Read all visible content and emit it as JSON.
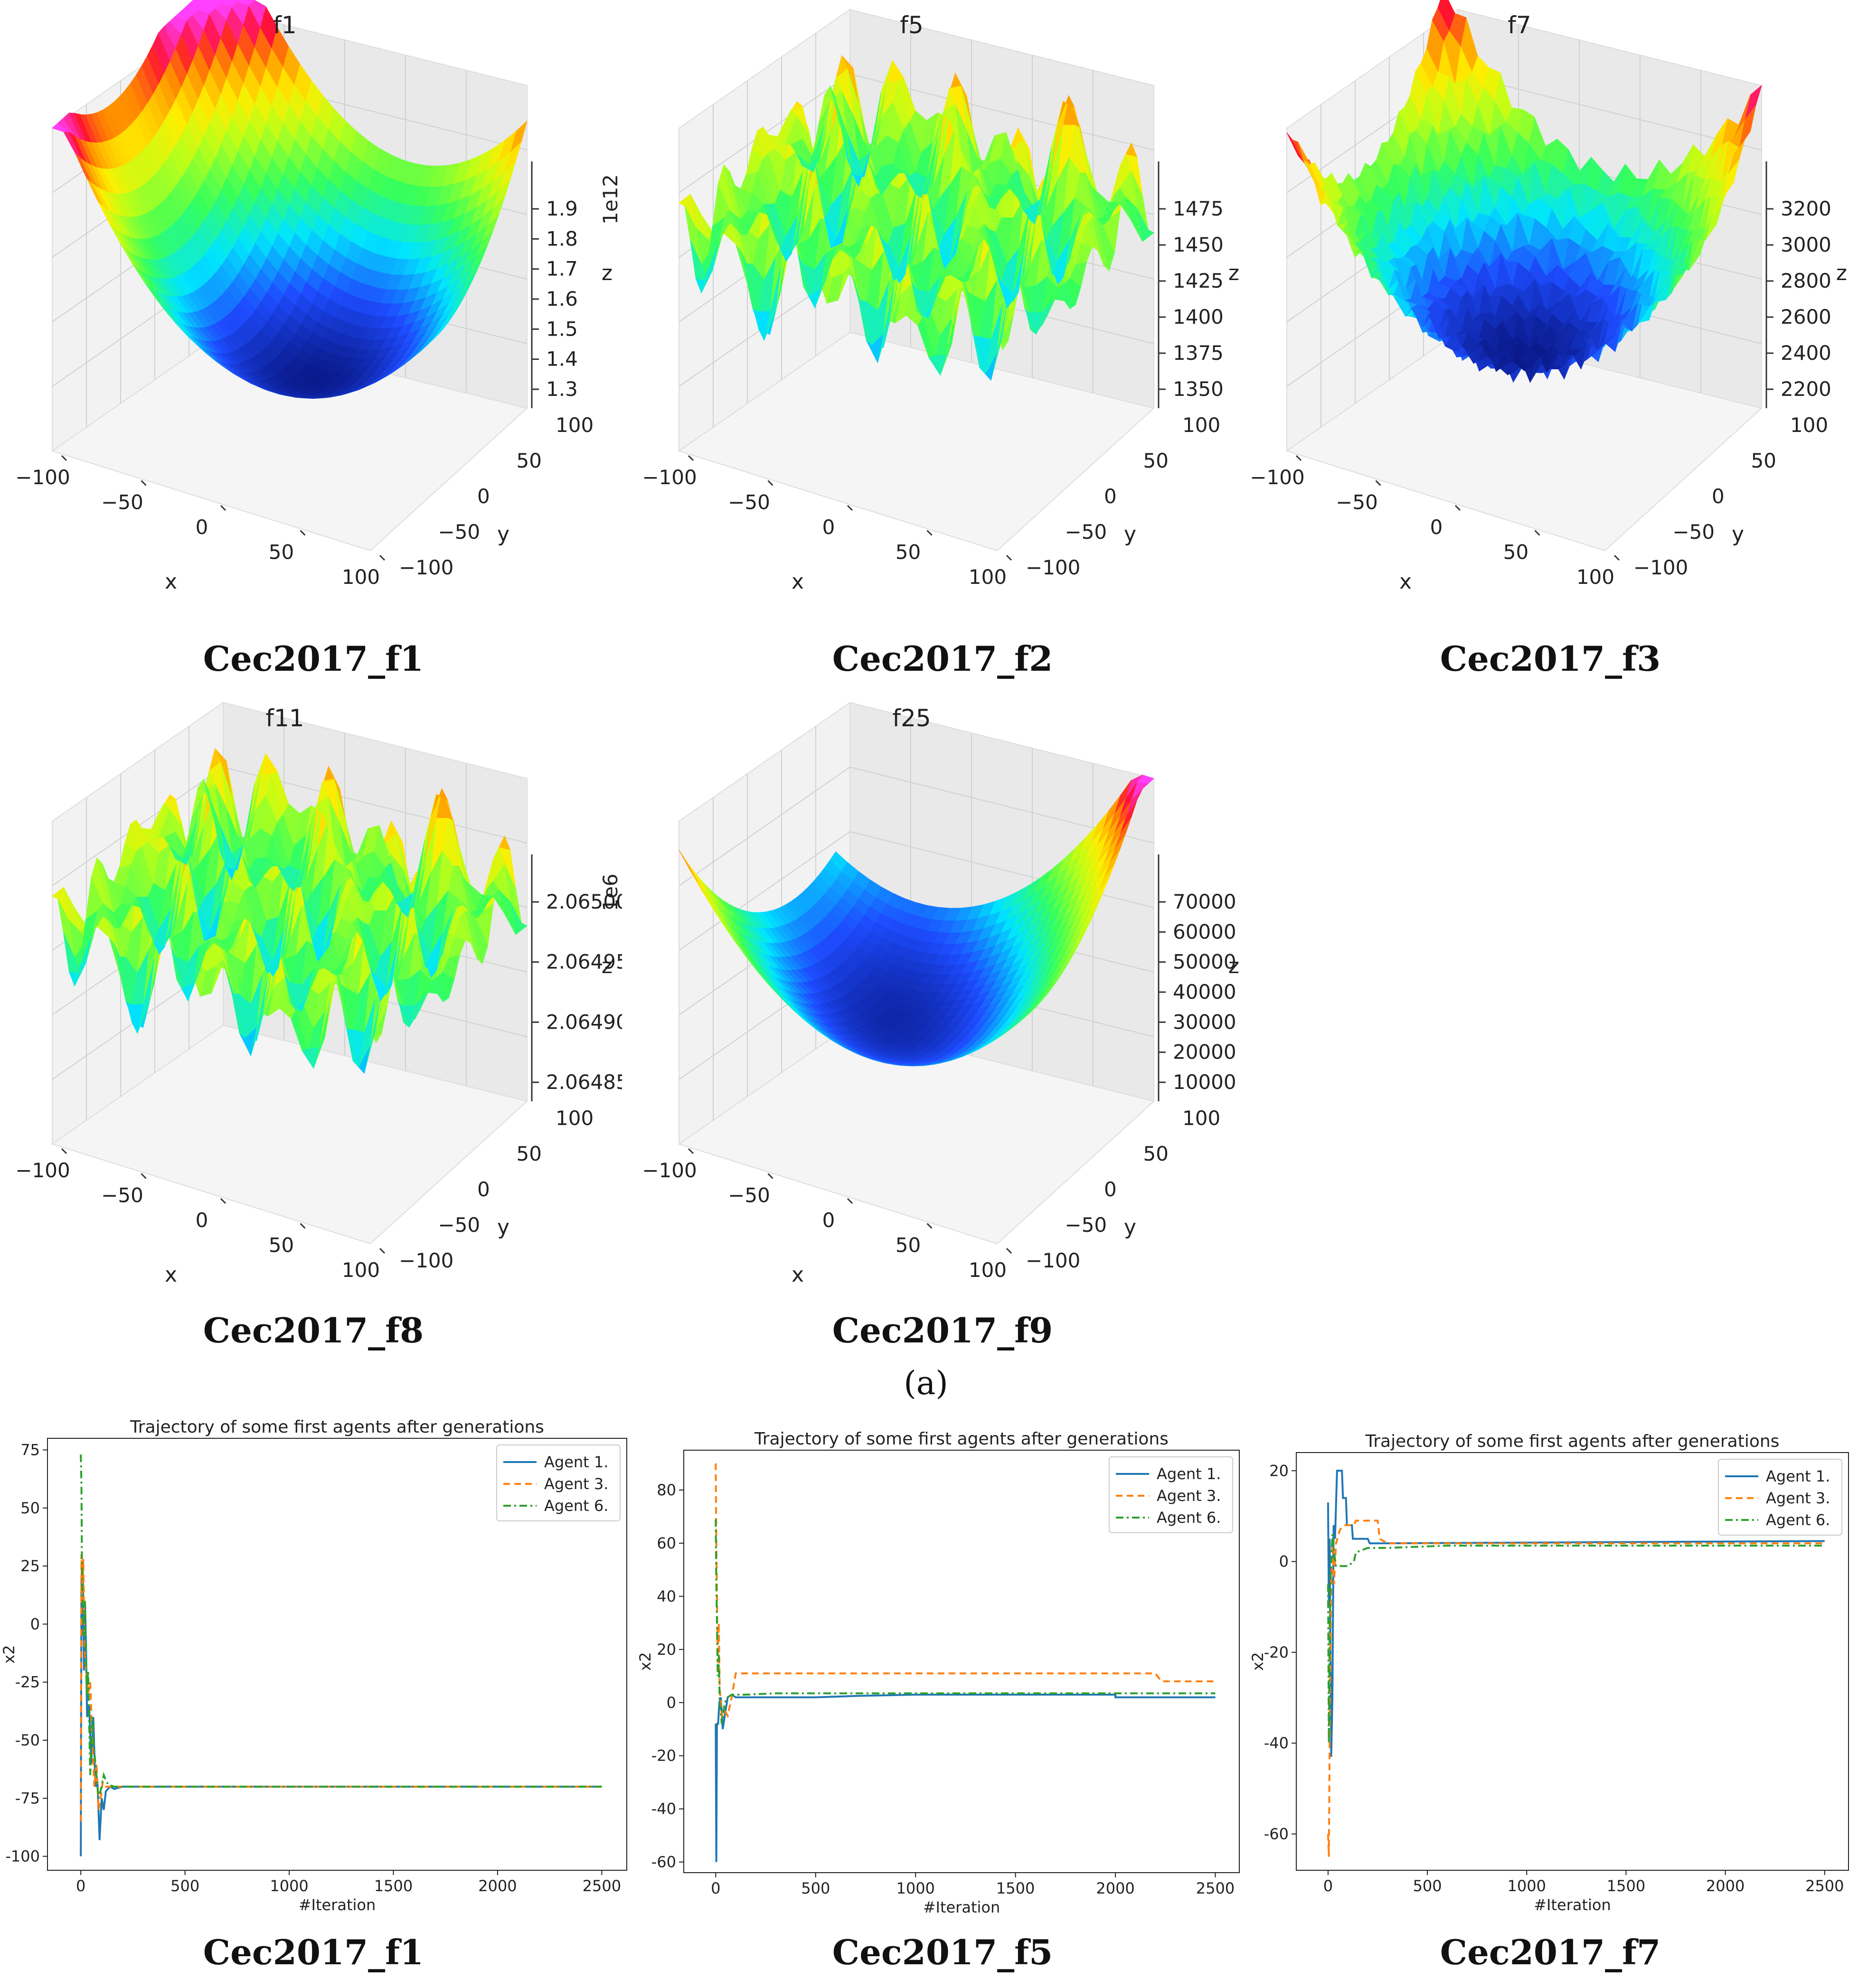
{
  "figure_label": "(a)",
  "chart_data": [
    {
      "type": "surface3d",
      "title": "f1",
      "caption": "Cec2017_f1",
      "x_ticks": [
        "−100",
        "−50",
        "0",
        "50",
        "100"
      ],
      "y_ticks": [
        "100",
        "50",
        "0",
        "−50",
        "−100"
      ],
      "z_ticks": [
        "1.9",
        "1.8",
        "1.7",
        "1.6",
        "1.5",
        "1.4",
        "1.3"
      ],
      "z_offset": "1e12",
      "xlabel": "x",
      "ylabel": "y",
      "zlabel": "z",
      "colormap": "gist_rainbow",
      "surface_shape": "bowl"
    },
    {
      "type": "surface3d",
      "title": "f5",
      "caption": "Cec2017_f2",
      "x_ticks": [
        "−100",
        "−50",
        "0",
        "50",
        "100"
      ],
      "y_ticks": [
        "100",
        "50",
        "0",
        "−50",
        "−100"
      ],
      "z_ticks": [
        "1475",
        "1450",
        "1425",
        "1400",
        "1375",
        "1350"
      ],
      "z_offset": "",
      "xlabel": "x",
      "ylabel": "y",
      "zlabel": "z",
      "colormap": "gist_rainbow",
      "surface_shape": "rugged"
    },
    {
      "type": "surface3d",
      "title": "f7",
      "caption": "Cec2017_f3",
      "x_ticks": [
        "−100",
        "−50",
        "0",
        "50",
        "100"
      ],
      "y_ticks": [
        "100",
        "50",
        "0",
        "−50",
        "−100"
      ],
      "z_ticks": [
        "3200",
        "3000",
        "2800",
        "2600",
        "2400",
        "2200"
      ],
      "z_offset": "",
      "xlabel": "x",
      "ylabel": "y",
      "zlabel": "z",
      "colormap": "gist_rainbow",
      "surface_shape": "noisy-bowl"
    },
    {
      "type": "surface3d",
      "title": "f11",
      "caption": "Cec2017_f8",
      "x_ticks": [
        "−100",
        "−50",
        "0",
        "50",
        "100"
      ],
      "y_ticks": [
        "100",
        "50",
        "0",
        "−50",
        "−100"
      ],
      "z_ticks": [
        "2.06500",
        "2.06495",
        "2.06490",
        "2.06485"
      ],
      "z_offset": "1e6",
      "xlabel": "x",
      "ylabel": "y",
      "zlabel": "z",
      "colormap": "gist_rainbow",
      "surface_shape": "rugged"
    },
    {
      "type": "surface3d",
      "title": "f25",
      "caption": "Cec2017_f9",
      "x_ticks": [
        "−100",
        "−50",
        "0",
        "50",
        "100"
      ],
      "y_ticks": [
        "100",
        "50",
        "0",
        "−50",
        "−100"
      ],
      "z_ticks": [
        "70000",
        "60000",
        "50000",
        "40000",
        "30000",
        "20000",
        "10000"
      ],
      "z_offset": "",
      "xlabel": "x",
      "ylabel": "y",
      "zlabel": "z",
      "colormap": "gist_rainbow",
      "surface_shape": "saddle-bowl"
    },
    {
      "type": "line",
      "title": "Trajectory of some first agents after generations",
      "caption": "Cec2017_f1",
      "xlabel": "#Iteration",
      "ylabel": "x2",
      "xlim": [
        -160,
        2620
      ],
      "ylim": [
        -106,
        80
      ],
      "x_ticks": [
        0,
        500,
        1000,
        1500,
        2000,
        2500
      ],
      "y_ticks": [
        75,
        50,
        25,
        0,
        -25,
        -50,
        -75,
        -100
      ],
      "legend": "top-right",
      "series": [
        {
          "name": "Agent 1.",
          "color": "#1f77b4",
          "dash": "",
          "points": [
            [
              0,
              -100
            ],
            [
              3,
              20
            ],
            [
              6,
              -5
            ],
            [
              10,
              25
            ],
            [
              15,
              -20
            ],
            [
              20,
              10
            ],
            [
              25,
              -10
            ],
            [
              30,
              -40
            ],
            [
              40,
              -35
            ],
            [
              50,
              -60
            ],
            [
              60,
              -40
            ],
            [
              70,
              -70
            ],
            [
              80,
              -68
            ],
            [
              90,
              -93
            ],
            [
              100,
              -75
            ],
            [
              110,
              -80
            ],
            [
              120,
              -72
            ],
            [
              140,
              -70
            ],
            [
              160,
              -71
            ],
            [
              200,
              -70
            ],
            [
              2500,
              -70
            ]
          ]
        },
        {
          "name": "Agent 3.",
          "color": "#ff7f0e",
          "dash": "14,9",
          "points": [
            [
              0,
              -85
            ],
            [
              3,
              30
            ],
            [
              6,
              10
            ],
            [
              12,
              28
            ],
            [
              18,
              -10
            ],
            [
              25,
              -20
            ],
            [
              35,
              -30
            ],
            [
              45,
              -25
            ],
            [
              55,
              -50
            ],
            [
              65,
              -70
            ],
            [
              75,
              -60
            ],
            [
              85,
              -80
            ],
            [
              95,
              -75
            ],
            [
              105,
              -68
            ],
            [
              120,
              -70
            ],
            [
              150,
              -70
            ],
            [
              2500,
              -70
            ]
          ]
        },
        {
          "name": "Agent 6.",
          "color": "#2ca02c",
          "dash": "16,7,4,7",
          "points": [
            [
              0,
              73
            ],
            [
              3,
              60
            ],
            [
              6,
              20
            ],
            [
              10,
              5
            ],
            [
              15,
              -5
            ],
            [
              20,
              10
            ],
            [
              28,
              -30
            ],
            [
              35,
              -20
            ],
            [
              45,
              -65
            ],
            [
              55,
              -40
            ],
            [
              65,
              -55
            ],
            [
              75,
              -65
            ],
            [
              85,
              -75
            ],
            [
              100,
              -70
            ],
            [
              110,
              -65
            ],
            [
              130,
              -69
            ],
            [
              160,
              -70
            ],
            [
              2500,
              -70
            ]
          ]
        }
      ]
    },
    {
      "type": "line",
      "title": "Trajectory of some first agents after generations",
      "caption": "Cec2017_f5",
      "xlabel": "#Iteration",
      "ylabel": "x2",
      "xlim": [
        -160,
        2620
      ],
      "ylim": [
        -64,
        95
      ],
      "x_ticks": [
        0,
        500,
        1000,
        1500,
        2000,
        2500
      ],
      "y_ticks": [
        80,
        60,
        40,
        20,
        0,
        -20,
        -40,
        -60
      ],
      "legend": "top-right",
      "series": [
        {
          "name": "Agent 1.",
          "color": "#1f77b4",
          "dash": "",
          "points": [
            [
              0,
              -8
            ],
            [
              3,
              -60
            ],
            [
              6,
              -8
            ],
            [
              12,
              -8
            ],
            [
              18,
              0
            ],
            [
              25,
              2
            ],
            [
              35,
              -10
            ],
            [
              45,
              -5
            ],
            [
              60,
              2
            ],
            [
              80,
              3
            ],
            [
              100,
              2
            ],
            [
              150,
              2
            ],
            [
              300,
              2
            ],
            [
              500,
              2
            ],
            [
              700,
              2.5
            ],
            [
              1000,
              3
            ],
            [
              2000,
              3
            ],
            [
              2000,
              2
            ],
            [
              2500,
              2
            ]
          ]
        },
        {
          "name": "Agent 3.",
          "color": "#ff7f0e",
          "dash": "14,9",
          "points": [
            [
              0,
              90
            ],
            [
              3,
              60
            ],
            [
              6,
              40
            ],
            [
              10,
              15
            ],
            [
              15,
              30
            ],
            [
              20,
              5
            ],
            [
              30,
              -5
            ],
            [
              45,
              -3
            ],
            [
              60,
              -5
            ],
            [
              80,
              2
            ],
            [
              100,
              11
            ],
            [
              2200,
              11
            ],
            [
              2230,
              8
            ],
            [
              2500,
              8
            ]
          ]
        },
        {
          "name": "Agent 6.",
          "color": "#2ca02c",
          "dash": "16,7,4,7",
          "points": [
            [
              0,
              69
            ],
            [
              3,
              45
            ],
            [
              6,
              30
            ],
            [
              10,
              10
            ],
            [
              15,
              18
            ],
            [
              20,
              0
            ],
            [
              30,
              -8
            ],
            [
              45,
              0
            ],
            [
              60,
              2
            ],
            [
              80,
              3
            ],
            [
              150,
              3
            ],
            [
              300,
              3.5
            ],
            [
              1000,
              3.5
            ],
            [
              2000,
              3.5
            ],
            [
              2500,
              3.5
            ]
          ]
        }
      ]
    },
    {
      "type": "line",
      "title": "Trajectory of some first agents after generations",
      "caption": "Cec2017_f7",
      "xlabel": "#Iteration",
      "ylabel": "x2",
      "xlim": [
        -160,
        2620
      ],
      "ylim": [
        -68,
        24
      ],
      "x_ticks": [
        0,
        500,
        1000,
        1500,
        2000,
        2500
      ],
      "y_ticks": [
        20,
        0,
        -20,
        -40,
        -60
      ],
      "legend": "top-right",
      "series": [
        {
          "name": "Agent 1.",
          "color": "#1f77b4",
          "dash": "",
          "points": [
            [
              0,
              13
            ],
            [
              4,
              -10
            ],
            [
              8,
              5
            ],
            [
              12,
              -20
            ],
            [
              16,
              -43
            ],
            [
              22,
              -30
            ],
            [
              28,
              8
            ],
            [
              35,
              5
            ],
            [
              45,
              20
            ],
            [
              70,
              20
            ],
            [
              75,
              14
            ],
            [
              90,
              14
            ],
            [
              95,
              8
            ],
            [
              120,
              8
            ],
            [
              125,
              5
            ],
            [
              200,
              5
            ],
            [
              210,
              4
            ],
            [
              2500,
              4.5
            ]
          ]
        },
        {
          "name": "Agent 3.",
          "color": "#ff7f0e",
          "dash": "14,9",
          "points": [
            [
              0,
              -60
            ],
            [
              4,
              -65
            ],
            [
              8,
              -40
            ],
            [
              12,
              -20
            ],
            [
              16,
              -5
            ],
            [
              22,
              5
            ],
            [
              30,
              -5
            ],
            [
              40,
              4
            ],
            [
              60,
              7
            ],
            [
              80,
              8
            ],
            [
              130,
              8
            ],
            [
              140,
              9
            ],
            [
              250,
              9
            ],
            [
              260,
              5
            ],
            [
              300,
              4
            ],
            [
              2500,
              4
            ]
          ]
        },
        {
          "name": "Agent 6.",
          "color": "#2ca02c",
          "dash": "16,7,4,7",
          "points": [
            [
              0,
              -5
            ],
            [
              4,
              -40
            ],
            [
              8,
              -15
            ],
            [
              12,
              -5
            ],
            [
              16,
              0
            ],
            [
              22,
              6
            ],
            [
              30,
              2
            ],
            [
              40,
              -1
            ],
            [
              60,
              -1
            ],
            [
              100,
              -1
            ],
            [
              130,
              0
            ],
            [
              140,
              2
            ],
            [
              200,
              3
            ],
            [
              300,
              3
            ],
            [
              600,
              3.5
            ],
            [
              2500,
              3.5
            ]
          ]
        }
      ]
    }
  ]
}
